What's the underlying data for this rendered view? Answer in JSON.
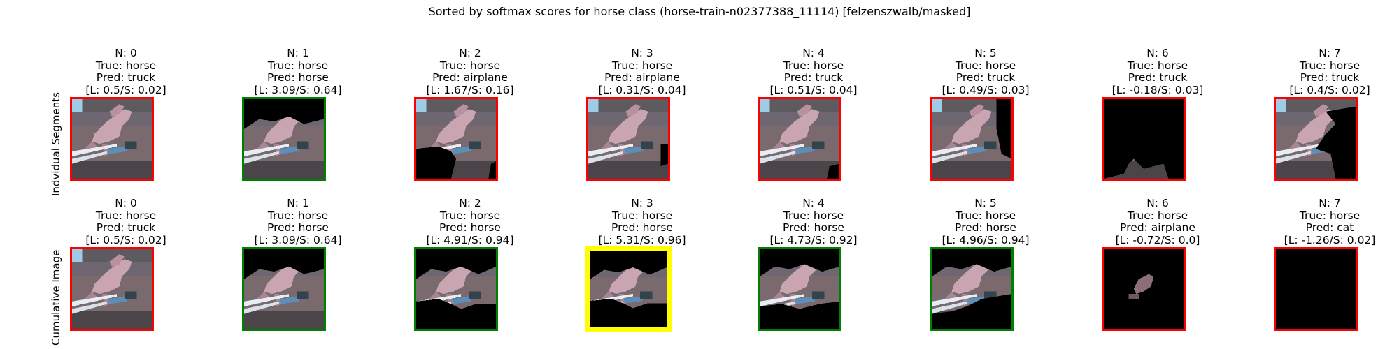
{
  "figure": {
    "title": "Sorted by softmax scores for horse class (horse-train-n02377388_11114) [felzenszwalb/masked]"
  },
  "colors": {
    "incorrect": "#ff0000",
    "correct": "#008000",
    "best": "#ffff00"
  },
  "icons": {
    "thumbnail": "horse-photo-thumbnail"
  },
  "chart_data": {
    "type": "table",
    "title": "Sorted by softmax scores for horse class (horse-train-n02377388_11114) [felzenszwalb/masked]",
    "rows": [
      {
        "label": "Indvidual Segments",
        "panels": [
          {
            "n": "N: 0",
            "true": "True: horse",
            "pred": "Pred: truck",
            "score": "[L: 0.5/S: 0.02]",
            "border": "incorrect",
            "mask": "full"
          },
          {
            "n": "N: 1",
            "true": "True: horse",
            "pred": "Pred: horse",
            "score": "[L: 3.09/S: 0.64]",
            "border": "correct",
            "mask": "top_dark"
          },
          {
            "n": "N: 2",
            "true": "True: horse",
            "pred": "Pred: airplane",
            "score": "[L: 1.67/S: 0.16]",
            "border": "incorrect",
            "mask": "bottom_left_dark"
          },
          {
            "n": "N: 3",
            "true": "True: horse",
            "pred": "Pred: airplane",
            "score": "[L: 0.31/S: 0.04]",
            "border": "incorrect",
            "mask": "right_sliver_dark"
          },
          {
            "n": "N: 4",
            "true": "True: horse",
            "pred": "Pred: truck",
            "score": "[L: 0.51/S: 0.04]",
            "border": "incorrect",
            "mask": "right_corner_dark"
          },
          {
            "n": "N: 5",
            "true": "True: horse",
            "pred": "Pred: truck",
            "score": "[L: 0.49/S: 0.03]",
            "border": "incorrect",
            "mask": "right_dark"
          },
          {
            "n": "N: 6",
            "true": "True: horse",
            "pred": "Pred: truck",
            "score": "[L: -0.18/S: 0.03]",
            "border": "incorrect",
            "mask": "mostly_dark"
          },
          {
            "n": "N: 7",
            "true": "True: horse",
            "pred": "Pred: truck",
            "score": "[L: 0.4/S: 0.02]",
            "border": "incorrect",
            "mask": "right_half_dark"
          }
        ]
      },
      {
        "label": "Cumulative Image",
        "panels": [
          {
            "n": "N: 0",
            "true": "True: horse",
            "pred": "Pred: truck",
            "score": "[L: 0.5/S: 0.02]",
            "border": "incorrect",
            "mask": "full"
          },
          {
            "n": "N: 1",
            "true": "True: horse",
            "pred": "Pred: horse",
            "score": "[L: 3.09/S: 0.64]",
            "border": "correct",
            "mask": "top_dark"
          },
          {
            "n": "N: 2",
            "true": "True: horse",
            "pred": "Pred: horse",
            "score": "[L: 4.91/S: 0.94]",
            "border": "correct",
            "mask": "top_and_bottom_dark"
          },
          {
            "n": "N: 3",
            "true": "True: horse",
            "pred": "Pred: horse",
            "score": "[L: 5.31/S: 0.96]",
            "border": "best",
            "mask": "top_and_bottom_dark"
          },
          {
            "n": "N: 4",
            "true": "True: horse",
            "pred": "Pred: horse",
            "score": "[L: 4.73/S: 0.92]",
            "border": "correct",
            "mask": "bottom_dark"
          },
          {
            "n": "N: 5",
            "true": "True: horse",
            "pred": "Pred: horse",
            "score": "[L: 4.96/S: 0.94]",
            "border": "correct",
            "mask": "bottom_right_dark"
          },
          {
            "n": "N: 6",
            "true": "True: horse",
            "pred": "Pred: airplane",
            "score": "[L: -0.72/S: 0.0]",
            "border": "incorrect",
            "mask": "almost_black"
          },
          {
            "n": "N: 7",
            "true": "True: horse",
            "pred": "Pred: cat",
            "score": "[L: -1.26/S: 0.02]",
            "border": "incorrect",
            "mask": "black"
          }
        ]
      }
    ]
  }
}
